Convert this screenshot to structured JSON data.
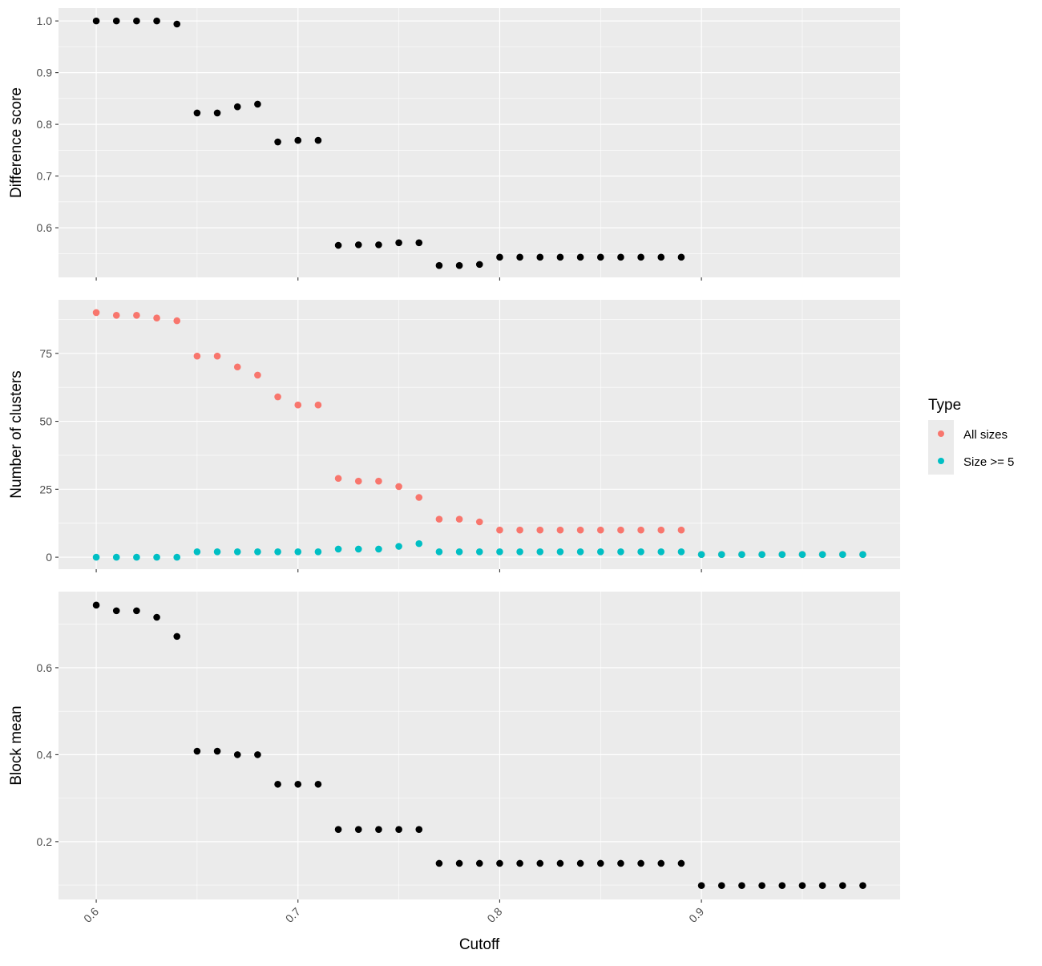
{
  "chart_data": [
    {
      "type": "scatter",
      "ylabel": "Difference score",
      "yticks": [
        0.6,
        0.7,
        0.8,
        0.9,
        1.0
      ],
      "ytick_labels": [
        "0.6",
        "0.7",
        "0.8",
        "0.9",
        "1.0"
      ],
      "ylim": [
        0.504,
        1.025
      ],
      "grid": true,
      "series": [
        {
          "name": "Difference score",
          "color": "#000000",
          "x": [
            0.6,
            0.61,
            0.62,
            0.63,
            0.64,
            0.65,
            0.66,
            0.67,
            0.68,
            0.69,
            0.7,
            0.71,
            0.72,
            0.73,
            0.74,
            0.75,
            0.76,
            0.77,
            0.78,
            0.79,
            0.8,
            0.81,
            0.82,
            0.83,
            0.84,
            0.85,
            0.86,
            0.87,
            0.88,
            0.89
          ],
          "y": [
            1.0,
            1.0,
            1.0,
            1.0,
            0.994,
            0.822,
            0.822,
            0.834,
            0.839,
            0.766,
            0.769,
            0.769,
            0.566,
            0.567,
            0.567,
            0.571,
            0.571,
            0.527,
            0.527,
            0.529,
            0.543,
            0.543,
            0.543,
            0.543,
            0.543,
            0.543,
            0.543,
            0.543,
            0.543,
            0.543
          ]
        }
      ]
    },
    {
      "type": "scatter",
      "ylabel": "Number of clusters",
      "yticks": [
        0,
        25,
        50,
        75
      ],
      "ytick_labels": [
        "0",
        "25",
        "50",
        "75"
      ],
      "ylim": [
        -4.4,
        94.7
      ],
      "grid": true,
      "legend": {
        "title": "Type",
        "placement": "right"
      },
      "series": [
        {
          "name": "All sizes",
          "color": "#F8766D",
          "x": [
            0.6,
            0.61,
            0.62,
            0.63,
            0.64,
            0.65,
            0.66,
            0.67,
            0.68,
            0.69,
            0.7,
            0.71,
            0.72,
            0.73,
            0.74,
            0.75,
            0.76,
            0.77,
            0.78,
            0.79,
            0.8,
            0.81,
            0.82,
            0.83,
            0.84,
            0.85,
            0.86,
            0.87,
            0.88,
            0.89,
            0.9,
            0.91,
            0.92,
            0.93,
            0.94,
            0.95,
            0.96,
            0.97,
            0.98
          ],
          "y": [
            90,
            89,
            89,
            88,
            87,
            74,
            74,
            70,
            67,
            59,
            56,
            56,
            29,
            28,
            28,
            26,
            22,
            14,
            14,
            13,
            10,
            10,
            10,
            10,
            10,
            10,
            10,
            10,
            10,
            10,
            1,
            1,
            1,
            1,
            1,
            1,
            1,
            1,
            1
          ]
        },
        {
          "name": "Size >= 5",
          "color": "#00BFC4",
          "x": [
            0.6,
            0.61,
            0.62,
            0.63,
            0.64,
            0.65,
            0.66,
            0.67,
            0.68,
            0.69,
            0.7,
            0.71,
            0.72,
            0.73,
            0.74,
            0.75,
            0.76,
            0.77,
            0.78,
            0.79,
            0.8,
            0.81,
            0.82,
            0.83,
            0.84,
            0.85,
            0.86,
            0.87,
            0.88,
            0.89,
            0.9,
            0.91,
            0.92,
            0.93,
            0.94,
            0.95,
            0.96,
            0.97,
            0.98
          ],
          "y": [
            0,
            0,
            0,
            0,
            0,
            2,
            2,
            2,
            2,
            2,
            2,
            2,
            3,
            3,
            3,
            4,
            5,
            2,
            2,
            2,
            2,
            2,
            2,
            2,
            2,
            2,
            2,
            2,
            2,
            2,
            1,
            1,
            1,
            1,
            1,
            1,
            1,
            1,
            1
          ]
        }
      ]
    },
    {
      "type": "scatter",
      "ylabel": "Block mean",
      "xlabel": "Cutoff",
      "yticks": [
        0.2,
        0.4,
        0.6
      ],
      "ytick_labels": [
        "0.2",
        "0.4",
        "0.6"
      ],
      "ylim": [
        0.067,
        0.775
      ],
      "grid": true,
      "series": [
        {
          "name": "Block mean",
          "color": "#000000",
          "x": [
            0.6,
            0.61,
            0.62,
            0.63,
            0.64,
            0.65,
            0.66,
            0.67,
            0.68,
            0.69,
            0.7,
            0.71,
            0.72,
            0.73,
            0.74,
            0.75,
            0.76,
            0.77,
            0.78,
            0.79,
            0.8,
            0.81,
            0.82,
            0.83,
            0.84,
            0.85,
            0.86,
            0.87,
            0.88,
            0.89,
            0.9,
            0.91,
            0.92,
            0.93,
            0.94,
            0.95,
            0.96,
            0.97,
            0.98
          ],
          "y": [
            0.744,
            0.731,
            0.731,
            0.716,
            0.672,
            0.408,
            0.408,
            0.4,
            0.4,
            0.332,
            0.332,
            0.332,
            0.228,
            0.228,
            0.228,
            0.228,
            0.228,
            0.15,
            0.15,
            0.15,
            0.15,
            0.15,
            0.15,
            0.15,
            0.15,
            0.15,
            0.15,
            0.15,
            0.15,
            0.15,
            0.099,
            0.099,
            0.099,
            0.099,
            0.099,
            0.099,
            0.099,
            0.099,
            0.099
          ]
        }
      ]
    }
  ],
  "xaxis": {
    "label": "Cutoff",
    "xlim": [
      0.5813,
      0.9985
    ],
    "ticks": [
      0.6,
      0.7,
      0.8,
      0.9
    ],
    "tick_labels": [
      "0.6",
      "0.7",
      "0.8",
      "0.9"
    ]
  },
  "legend": {
    "title": "Type",
    "items": [
      {
        "label": "All sizes",
        "color": "#F8766D"
      },
      {
        "label": "Size >= 5",
        "color": "#00BFC4"
      }
    ]
  }
}
